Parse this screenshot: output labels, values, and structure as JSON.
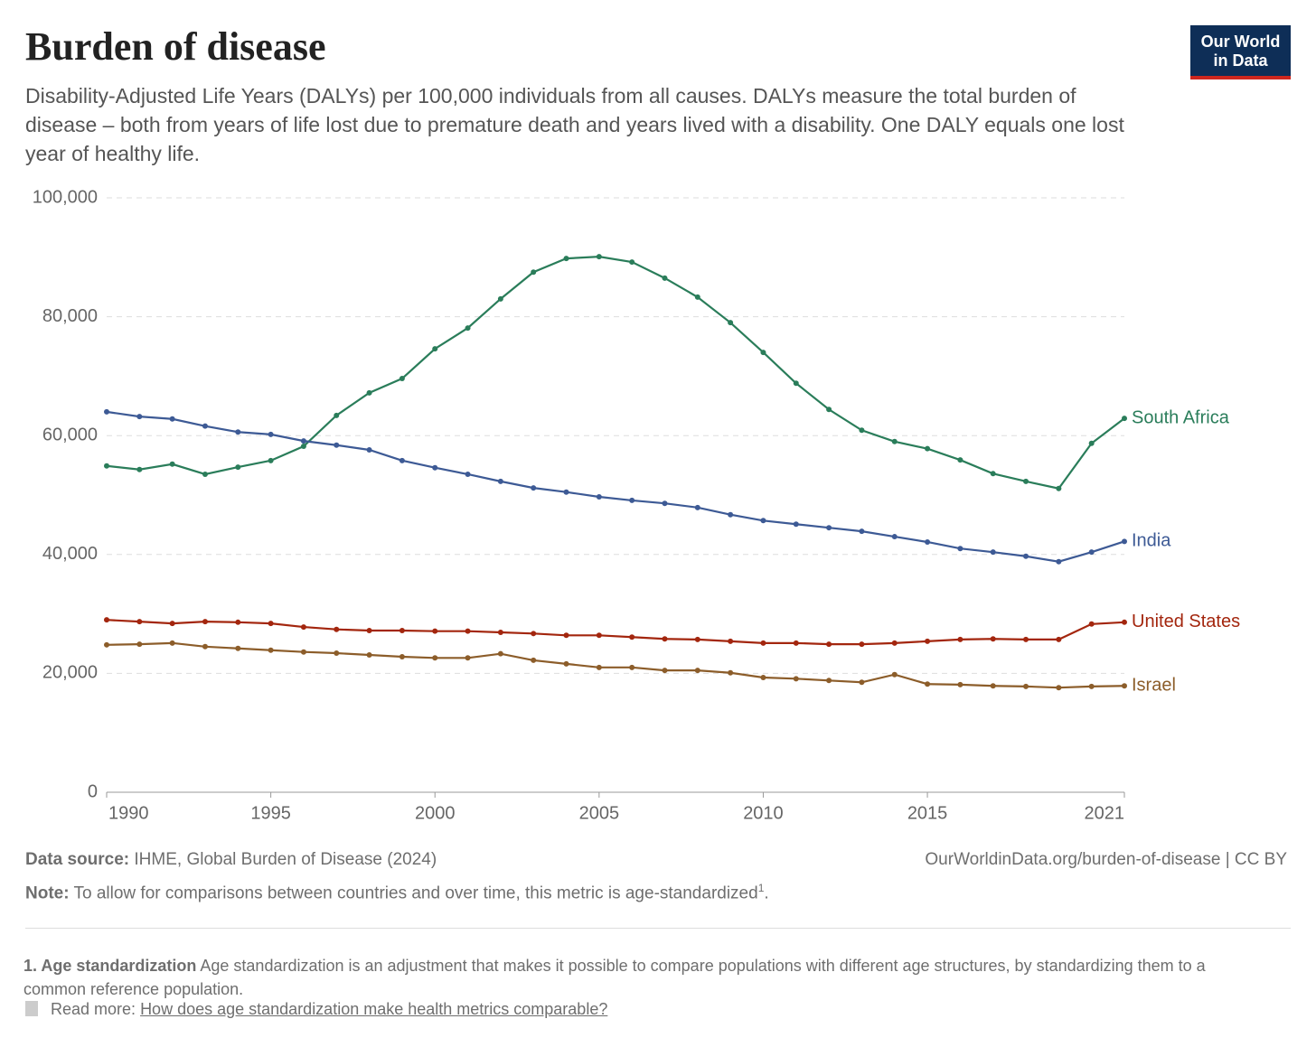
{
  "chart_data": {
    "type": "line",
    "title": "Burden of disease",
    "subtitle": "Disability-Adjusted Life Years (DALYs) per 100,000 individuals from all causes. DALYs measure the total burden of disease – both from years of life lost due to premature death and years lived with a disability. One DALY equals one lost year of healthy life.",
    "logo": [
      "Our World",
      "in Data"
    ],
    "x": [
      1990,
      1991,
      1992,
      1993,
      1994,
      1995,
      1996,
      1997,
      1998,
      1999,
      2000,
      2001,
      2002,
      2003,
      2004,
      2005,
      2006,
      2007,
      2008,
      2009,
      2010,
      2011,
      2012,
      2013,
      2014,
      2015,
      2016,
      2017,
      2018,
      2019,
      2020,
      2021
    ],
    "xlim": [
      1990,
      2021
    ],
    "xticks": [
      1990,
      1995,
      2000,
      2005,
      2010,
      2015,
      2021
    ],
    "ylim": [
      0,
      100000
    ],
    "yticks": [
      0,
      {
        "value": 20000,
        "label": "20,000"
      },
      {
        "value": 40000,
        "label": "40,000"
      },
      {
        "value": 60000,
        "label": "60,000"
      },
      {
        "value": 80000,
        "label": "80,000"
      },
      {
        "value": 100000,
        "label": "100,000"
      }
    ],
    "grid": true,
    "series": [
      {
        "name": "South Africa",
        "color": "#2a7d5a",
        "values": [
          54900,
          54300,
          55200,
          53500,
          54700,
          55800,
          58200,
          63400,
          67200,
          69600,
          74600,
          78100,
          83000,
          87500,
          89800,
          90100,
          89200,
          86500,
          83300,
          79000,
          74000,
          68800,
          64400,
          60900,
          59000,
          57800,
          55900,
          53600,
          52300,
          51100,
          58700,
          62900
        ]
      },
      {
        "name": "India",
        "color": "#3d5a95",
        "values": [
          64000,
          63200,
          62800,
          61600,
          60600,
          60200,
          59100,
          58400,
          57600,
          55800,
          54600,
          53500,
          52300,
          51200,
          50500,
          49700,
          49100,
          48600,
          47900,
          46700,
          45700,
          45100,
          44500,
          43900,
          43000,
          42100,
          41000,
          40400,
          39700,
          38800,
          40400,
          42200
        ]
      },
      {
        "name": "United States",
        "color": "#a3260e",
        "values": [
          29000,
          28700,
          28400,
          28700,
          28600,
          28400,
          27800,
          27400,
          27200,
          27200,
          27100,
          27100,
          26900,
          26700,
          26400,
          26400,
          26100,
          25800,
          25700,
          25400,
          25100,
          25100,
          24900,
          24900,
          25100,
          25400,
          25700,
          25800,
          25700,
          25700,
          28300,
          28600
        ]
      },
      {
        "name": "Israel",
        "color": "#8c5d2a",
        "values": [
          24800,
          24900,
          25100,
          24500,
          24200,
          23900,
          23600,
          23400,
          23100,
          22800,
          22600,
          22600,
          23300,
          22200,
          21600,
          21000,
          21000,
          20500,
          20500,
          20100,
          19300,
          19100,
          18800,
          18500,
          19800,
          18200,
          18100,
          17900,
          17800,
          17600,
          17800,
          17900
        ]
      }
    ],
    "source": {
      "label": "Data source:",
      "text": "IHME, Global Burden of Disease (2024)"
    },
    "url": "OurWorldinData.org/burden-of-disease | CC BY",
    "note": {
      "label": "Note:",
      "text": "To allow for comparisons between countries and over time, this metric is age-standardized",
      "sup": "1",
      "end": "."
    },
    "footnote": {
      "label": "1. Age standardization",
      "text": "Age standardization is an adjustment that makes it possible to compare populations with different age structures, by standardizing them to a common reference population."
    },
    "read_more": {
      "label": "Read more:",
      "link": "How does age standardization make health metrics comparable?"
    }
  }
}
